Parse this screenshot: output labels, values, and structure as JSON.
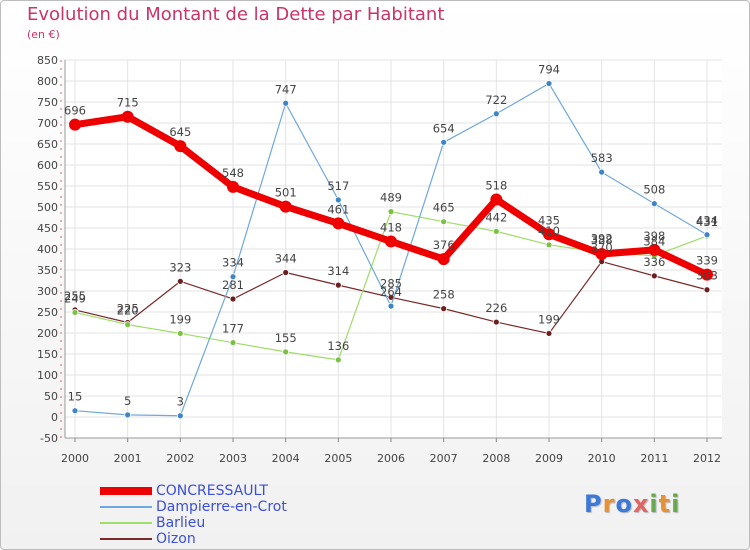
{
  "chart_data": {
    "type": "line",
    "title": "Evolution du Montant de la Dette par Habitant",
    "subtitle": "(en €)",
    "x": [
      "2000",
      "2001",
      "2002",
      "2003",
      "2004",
      "2005",
      "2006",
      "2007",
      "2008",
      "2009",
      "2010",
      "2011",
      "2012"
    ],
    "ylim": [
      -50,
      850
    ],
    "yticks": [
      -50,
      0,
      50,
      100,
      150,
      200,
      250,
      300,
      350,
      400,
      450,
      500,
      550,
      600,
      650,
      700,
      750,
      800,
      850
    ],
    "grid": true,
    "legend_position": "bottom-left",
    "series": [
      {
        "name": "CONCRESSAULT",
        "color": "#ee0000",
        "width": 7,
        "values": [
          696,
          715,
          645,
          548,
          501,
          461,
          418,
          376,
          518,
          435,
          388,
          398,
          339
        ],
        "labels": [
          "696",
          "715",
          "645",
          "548",
          "501",
          "461",
          "418",
          "376",
          "518",
          "435",
          "388",
          "398",
          "339"
        ]
      },
      {
        "name": "Dampierre-en-Crot",
        "color": "#6fa8dc",
        "point": "#3d85c6",
        "width": 1.2,
        "values": [
          15,
          5,
          3,
          334,
          747,
          517,
          264,
          654,
          722,
          794,
          583,
          508,
          434
        ],
        "labels": [
          "15",
          "5",
          "3",
          "334",
          "747",
          "517",
          "264",
          "654",
          "722",
          "794",
          "583",
          "508",
          "434"
        ]
      },
      {
        "name": "Barlieu",
        "color": "#9fdc6a",
        "point": "#7ac143",
        "width": 1.2,
        "values": [
          249,
          220,
          199,
          177,
          155,
          136,
          489,
          465,
          442,
          410,
          392,
          384,
          431
        ],
        "labels": [
          "249",
          "220",
          "199",
          "177",
          "155",
          "136",
          "489",
          "465",
          "442",
          "410",
          "392",
          "384",
          "431"
        ]
      },
      {
        "name": "Oizon",
        "color": "#7a2a2a",
        "point": "#6b1f1f",
        "width": 1.2,
        "values": [
          255,
          225,
          323,
          281,
          344,
          314,
          285,
          258,
          226,
          199,
          370,
          336,
          303
        ],
        "labels": [
          "255",
          "225",
          "323",
          "281",
          "344",
          "314",
          "285",
          "258",
          "226",
          "199",
          "370",
          "336",
          "303"
        ]
      }
    ]
  },
  "logo": {
    "letters": [
      "P",
      "r",
      "o",
      "x",
      "i",
      "t",
      "i"
    ],
    "colors": [
      "#3c78d8",
      "#e69138",
      "#3c78d8",
      "#e06666",
      "#6aa84f",
      "#e69138",
      "#6aa84f"
    ]
  }
}
